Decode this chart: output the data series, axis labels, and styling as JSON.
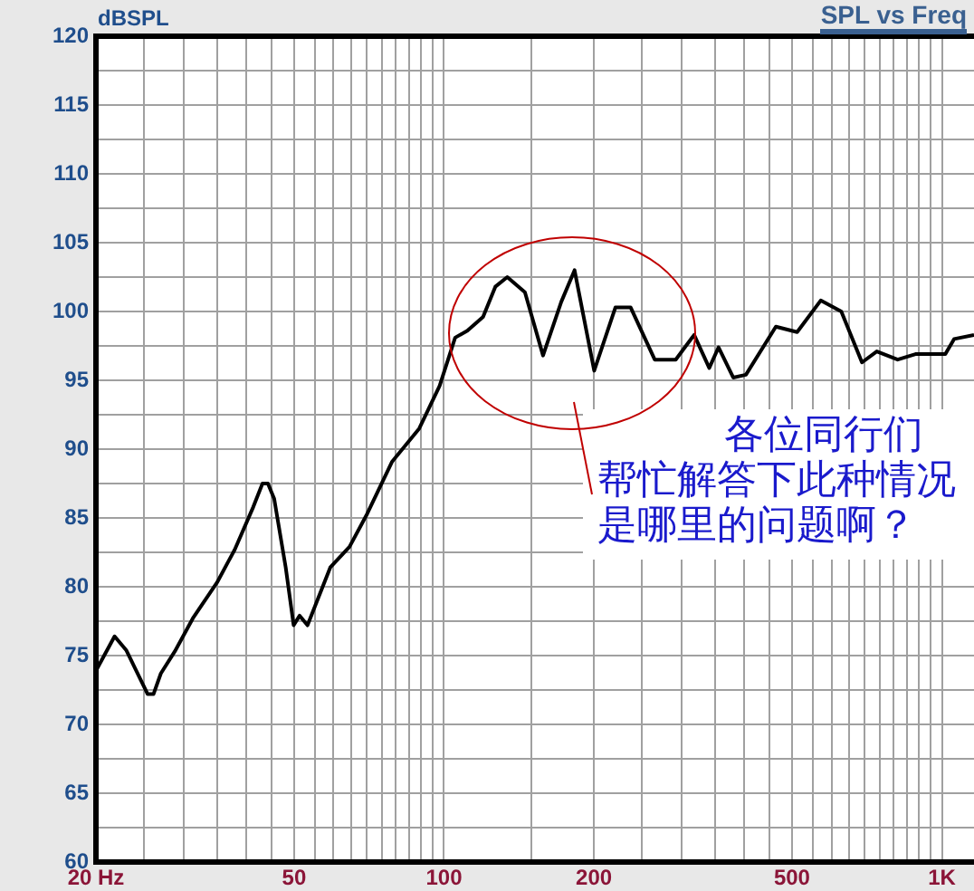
{
  "chart_data": {
    "type": "line",
    "title": "SPL vs Freq",
    "ylabel": "dBSPL",
    "annotations": [
      "各位同行们帮忙解答下此种情况是哪里的问题啊？"
    ],
    "x": [
      20,
      21.8,
      23,
      25.4,
      26.1,
      27,
      28.8,
      31.3,
      35,
      38,
      41.4,
      43.2,
      44.3,
      45.6,
      48.1,
      49.9,
      51.3,
      53.2,
      59.1,
      64.6,
      70.1,
      78.7,
      89.2,
      98,
      105.3,
      111.4,
      119.8,
      126.8,
      134,
      145.4,
      158.1,
      172,
      182.9,
      200.3,
      221,
      237,
      265,
      292,
      318,
      341,
      356,
      381,
      404,
      464,
      512,
      571,
      628,
      691,
      740,
      815,
      885,
      1016,
      1058,
      1160
    ],
    "series": [
      {
        "color": "#000000",
        "values": [
          73.9,
          76.4,
          75.4,
          72.2,
          72.2,
          73.7,
          75.3,
          77.7,
          80.3,
          82.7,
          85.8,
          87.5,
          87.5,
          86.4,
          81.4,
          77.2,
          77.9,
          77.2,
          81.4,
          82.9,
          85.3,
          89.1,
          91.5,
          94.6,
          98.1,
          98.6,
          99.6,
          101.8,
          102.5,
          101.4,
          96.8,
          100.7,
          103,
          95.7,
          100.3,
          100.3,
          96.5,
          96.5,
          98.3,
          95.9,
          97.4,
          95.2,
          95.4,
          98.9,
          98.5,
          100.8,
          100,
          96.3,
          97.1,
          96.5,
          96.9,
          96.9,
          98,
          98.3
        ]
      }
    ],
    "xlim": [
      20,
      1160
    ],
    "ylim": [
      60,
      120
    ],
    "log": "x",
    "grid": true,
    "line_style": "solid",
    "xticks": [
      {
        "value": 20,
        "label": "20 Hz"
      },
      {
        "value": 25,
        "label": null
      },
      {
        "value": 30,
        "label": null
      },
      {
        "value": 35,
        "label": null
      },
      {
        "value": 40,
        "label": null
      },
      {
        "value": 45,
        "label": null
      },
      {
        "value": 50,
        "label": "50"
      },
      {
        "value": 55,
        "label": null
      },
      {
        "value": 60,
        "label": null
      },
      {
        "value": 65,
        "label": null
      },
      {
        "value": 70,
        "label": null
      },
      {
        "value": 75,
        "label": null
      },
      {
        "value": 80,
        "label": null
      },
      {
        "value": 85,
        "label": null
      },
      {
        "value": 90,
        "label": null
      },
      {
        "value": 95,
        "label": null
      },
      100,
      {
        "value": 150,
        "label": null
      },
      200,
      {
        "value": 250,
        "label": null
      },
      {
        "value": 300,
        "label": null
      },
      {
        "value": 350,
        "label": null
      },
      {
        "value": 400,
        "label": null
      },
      {
        "value": 450,
        "label": null
      },
      500,
      {
        "value": 550,
        "label": null
      },
      {
        "value": 600,
        "label": null
      },
      {
        "value": 650,
        "label": null
      },
      {
        "value": 700,
        "label": null
      },
      {
        "value": 750,
        "label": null
      },
      {
        "value": 800,
        "label": null
      },
      {
        "value": 850,
        "label": null
      },
      {
        "value": 900,
        "label": null
      },
      {
        "value": 950,
        "label": null
      },
      {
        "value": 1000,
        "label": "1K"
      }
    ],
    "yticks": [
      60,
      {
        "value": 62.5,
        "label": null
      },
      65,
      {
        "value": 67.5,
        "label": null
      },
      70,
      {
        "value": 72.5,
        "label": null
      },
      75,
      {
        "value": 77.5,
        "label": null
      },
      80,
      {
        "value": 82.5,
        "label": null
      },
      85,
      {
        "value": 87.5,
        "label": null
      },
      90,
      {
        "value": 92.5,
        "label": null
      },
      95,
      {
        "value": 97.5,
        "label": null
      },
      100,
      {
        "value": 102.5,
        "label": null
      },
      105,
      {
        "value": 107.5,
        "label": null
      },
      110,
      {
        "value": 112.5,
        "label": null
      },
      115,
      {
        "value": 117.5,
        "label": null
      },
      120
    ]
  }
}
